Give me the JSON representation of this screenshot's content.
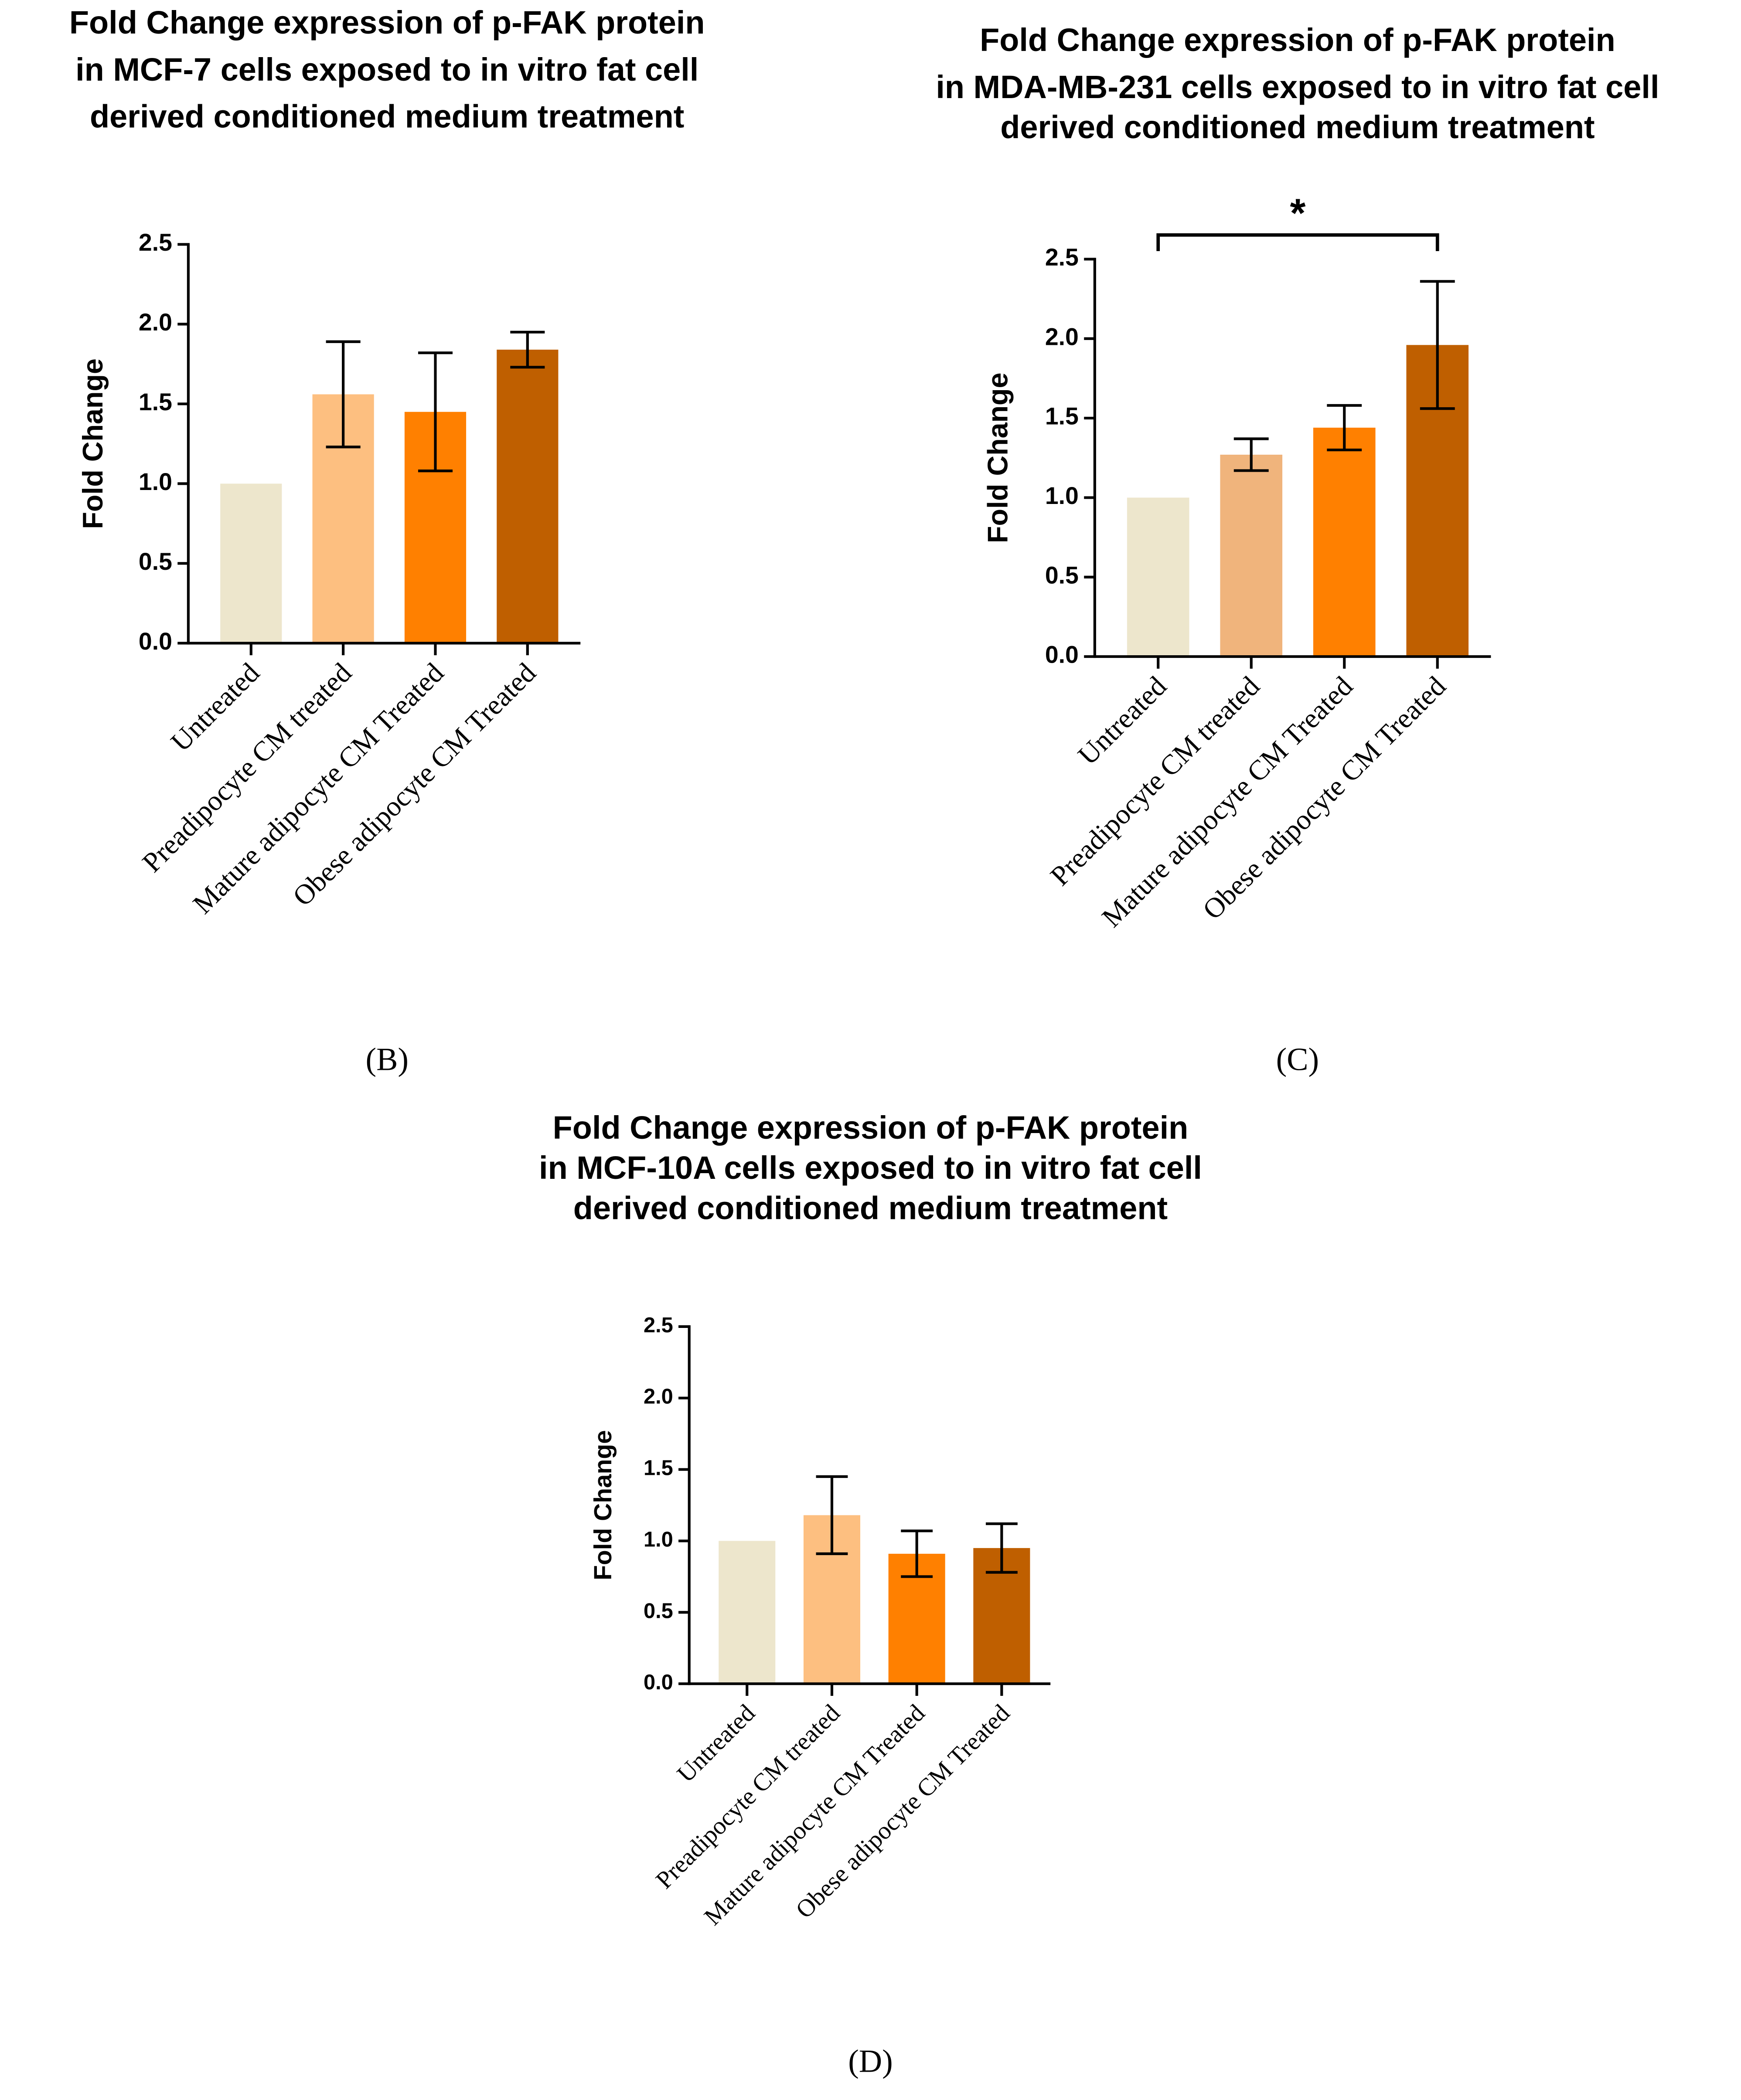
{
  "chart_data": [
    {
      "type": "bar",
      "title": [
        "Fold Change expression of p-FAK protein",
        "in MCF-7 cells exposed to in vitro fat cell",
        "derived conditioned medium treatment"
      ],
      "y_label": "Fold Change",
      "categories": [
        "Untreated",
        "Preadipocyte CM treated",
        "Mature adipocyte CM Treated",
        "Obese adipocyte CM Treated"
      ],
      "values": [
        1.0,
        1.56,
        1.45,
        1.84
      ],
      "errors": [
        null,
        0.33,
        0.37,
        0.11
      ],
      "colors": [
        "#ede6cc",
        "#fdbf80",
        "#ff8000",
        "#bf5f00"
      ],
      "ylim": [
        0,
        2.5
      ],
      "yticks": [
        {
          "value": 0,
          "label": "0.0"
        },
        0.5,
        {
          "value": 1,
          "label": "1.0"
        },
        1.5,
        {
          "value": 2,
          "label": "2.0"
        },
        2.5
      ],
      "panel_label": "(B)"
    },
    {
      "type": "bar",
      "title": [
        "Fold Change expression of p-FAK protein",
        "in MDA-MB-231 cells exposed to in vitro fat cell",
        "derived conditioned medium treatment"
      ],
      "y_label": "Fold Change",
      "categories": [
        "Untreated",
        "Preadipocyte CM treated",
        "Mature adipocyte CM Treated",
        "Obese adipocyte CM Treated"
      ],
      "values": [
        1.0,
        1.27,
        1.44,
        1.96
      ],
      "errors": [
        null,
        0.1,
        0.14,
        0.4
      ],
      "colors": [
        "#ede6cc",
        "#f0b47c",
        "#ff8000",
        "#bf5f00"
      ],
      "ylim": [
        0,
        2.5
      ],
      "yticks": [
        {
          "value": 0,
          "label": "0.0"
        },
        0.5,
        {
          "value": 1,
          "label": "1.0"
        },
        1.5,
        {
          "value": 2,
          "label": "2.0"
        },
        2.5
      ],
      "annotation": "*",
      "panel_label": "(C)"
    },
    {
      "type": "bar",
      "title": [
        "Fold Change expression of p-FAK protein",
        "in MCF-10A cells exposed to in vitro fat cell",
        "derived conditioned medium treatment"
      ],
      "y_label": "Fold Change",
      "categories": [
        "Untreated",
        "Preadipocyte CM treated",
        "Mature adipocyte CM Treated",
        "Obese adipocyte CM Treated"
      ],
      "values": [
        1.0,
        1.18,
        0.91,
        0.95
      ],
      "errors": [
        null,
        0.27,
        0.16,
        0.17
      ],
      "colors": [
        "#ede6cc",
        "#fdbf80",
        "#ff8000",
        "#bf5f00"
      ],
      "ylim": [
        0,
        2.5
      ],
      "yticks": [
        {
          "value": 0,
          "label": "0.0"
        },
        0.5,
        {
          "value": 1,
          "label": "1.0"
        },
        1.5,
        {
          "value": 2,
          "label": "2.0"
        },
        2.5
      ],
      "panel_label": "(D)"
    }
  ]
}
